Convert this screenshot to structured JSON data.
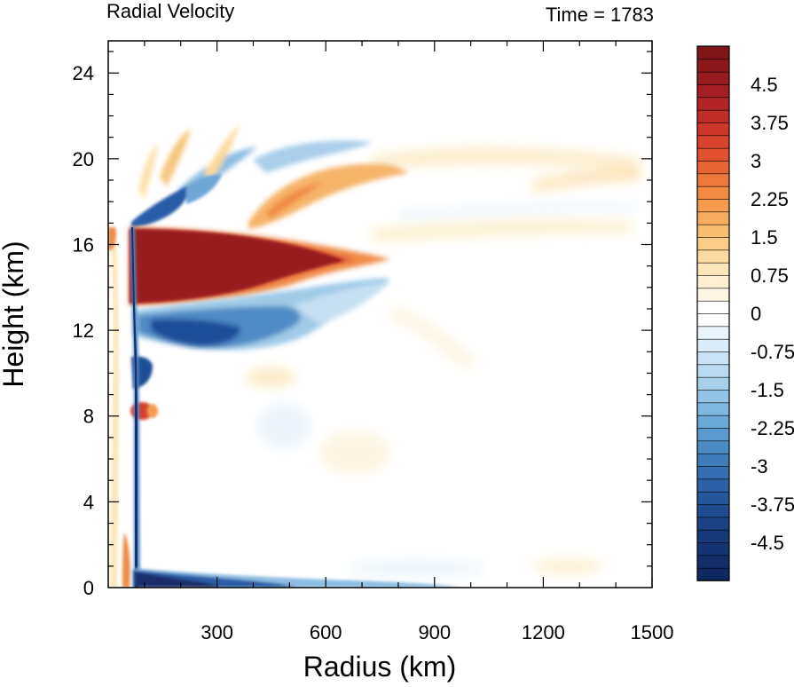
{
  "chart_data": {
    "type": "heatmap",
    "title_left": "Radial Velocity",
    "title_right": "Time = 1783",
    "xlabel": "Radius (km)",
    "ylabel": "Height (km)",
    "xlim": [
      0,
      1500
    ],
    "ylim": [
      0,
      25.5
    ],
    "x_ticks": [
      300,
      600,
      900,
      1200,
      1500
    ],
    "x_tick_labels": [
      "300",
      "600",
      "900",
      "1200",
      "1500"
    ],
    "y_ticks": [
      0,
      4,
      8,
      12,
      16,
      20,
      24
    ],
    "y_tick_labels": [
      "0",
      "4",
      "8",
      "12",
      "16",
      "20",
      "24"
    ],
    "colorbar": {
      "levels": [
        -5.25,
        -5.0,
        -4.75,
        -4.5,
        -4.25,
        -4.0,
        -3.75,
        -3.5,
        -3.25,
        -3.0,
        -2.75,
        -2.5,
        -2.25,
        -2.0,
        -1.75,
        -1.5,
        -1.25,
        -1.0,
        -0.75,
        -0.5,
        -0.25,
        0,
        0.25,
        0.5,
        0.75,
        1.0,
        1.25,
        1.5,
        1.75,
        2.0,
        2.25,
        2.5,
        2.75,
        3.0,
        3.25,
        3.5,
        3.75,
        4.0,
        4.25,
        4.5,
        4.75,
        5.0,
        5.25
      ],
      "labels": [
        "4.5",
        "3.75",
        "3",
        "2.25",
        "1.5",
        "0.75",
        "0",
        "-0.75",
        "-1.5",
        "-2.25",
        "-3",
        "-3.75",
        "-4.5"
      ],
      "label_values": [
        4.5,
        3.75,
        3.0,
        2.25,
        1.5,
        0.75,
        0,
        -0.75,
        -1.5,
        -2.25,
        -3.0,
        -3.75,
        -4.5
      ],
      "range": [
        -5.25,
        5.25
      ]
    },
    "features": [
      {
        "name": "upper-outflow-jet",
        "r": [
          60,
          800
        ],
        "z": [
          13.2,
          16.6
        ],
        "value": "> 5 (outflow)"
      },
      {
        "name": "inflow-below-outflow",
        "r": [
          120,
          600
        ],
        "z": [
          11,
          13
        ],
        "value": "about -4 (inflow)"
      },
      {
        "name": "inflow-near-eyewall-top",
        "r": [
          100,
          250
        ],
        "z": [
          16.5,
          18
        ],
        "value": "about -4"
      },
      {
        "name": "boundary-layer-inflow",
        "r": [
          70,
          500
        ],
        "z": [
          0,
          1.2
        ],
        "value": "< -5 (strong inflow)"
      },
      {
        "name": "eyewall-updraft-edge",
        "r": [
          70,
          80
        ],
        "z": [
          0,
          16.5
        ],
        "value": "strong negative"
      },
      {
        "name": "upper-outflow-bands",
        "r": [
          350,
          1480
        ],
        "z": [
          16,
          21
        ],
        "value": "0.5 to 2.5"
      }
    ]
  }
}
